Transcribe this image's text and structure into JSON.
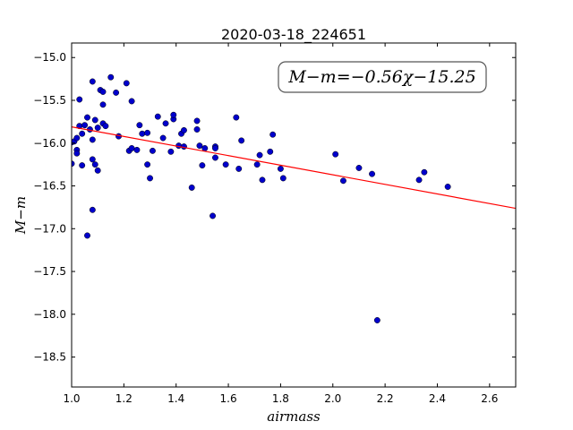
{
  "chart_data": {
    "type": "scatter",
    "title": "2020-03-18_224651",
    "xlabel": "airmass",
    "ylabel": "M−m",
    "xlim": [
      1.0,
      2.7
    ],
    "ylim": [
      -18.85,
      -14.83
    ],
    "y_inverted": true,
    "grid": false,
    "xticks": [
      "1.0",
      "1.2",
      "1.4",
      "1.6",
      "1.8",
      "2.0",
      "2.2",
      "2.4",
      "2.6"
    ],
    "yticks": [
      "−15.0",
      "−15.5",
      "−16.0",
      "−16.5",
      "−17.0",
      "−17.5",
      "−18.0",
      "−18.5"
    ],
    "annotation": "M−m=−0.56χ−15.25",
    "fit": {
      "slope": -0.56,
      "intercept": -15.25,
      "color": "#ff0000"
    },
    "point_color": "#0000cc",
    "points": [
      [
        1.0,
        -16.24
      ],
      [
        1.0,
        -15.99
      ],
      [
        1.01,
        -15.98
      ],
      [
        1.02,
        -15.94
      ],
      [
        1.02,
        -16.08
      ],
      [
        1.02,
        -16.12
      ],
      [
        1.03,
        -15.8
      ],
      [
        1.03,
        -15.49
      ],
      [
        1.04,
        -15.89
      ],
      [
        1.04,
        -16.26
      ],
      [
        1.05,
        -15.79
      ],
      [
        1.06,
        -15.7
      ],
      [
        1.06,
        -17.08
      ],
      [
        1.07,
        -15.84
      ],
      [
        1.08,
        -15.28
      ],
      [
        1.08,
        -16.19
      ],
      [
        1.08,
        -15.96
      ],
      [
        1.08,
        -16.78
      ],
      [
        1.09,
        -15.73
      ],
      [
        1.09,
        -16.25
      ],
      [
        1.1,
        -16.32
      ],
      [
        1.1,
        -15.82
      ],
      [
        1.11,
        -15.38
      ],
      [
        1.12,
        -15.77
      ],
      [
        1.12,
        -15.4
      ],
      [
        1.12,
        -15.55
      ],
      [
        1.13,
        -15.8
      ],
      [
        1.15,
        -15.23
      ],
      [
        1.17,
        -15.41
      ],
      [
        1.18,
        -15.92
      ],
      [
        1.21,
        -15.3
      ],
      [
        1.22,
        -16.09
      ],
      [
        1.23,
        -15.51
      ],
      [
        1.23,
        -16.06
      ],
      [
        1.25,
        -16.08
      ],
      [
        1.26,
        -15.79
      ],
      [
        1.27,
        -15.89
      ],
      [
        1.29,
        -15.88
      ],
      [
        1.29,
        -16.25
      ],
      [
        1.3,
        -16.41
      ],
      [
        1.31,
        -16.09
      ],
      [
        1.33,
        -15.69
      ],
      [
        1.35,
        -15.94
      ],
      [
        1.36,
        -15.77
      ],
      [
        1.38,
        -16.1
      ],
      [
        1.39,
        -15.72
      ],
      [
        1.39,
        -15.67
      ],
      [
        1.41,
        -16.03
      ],
      [
        1.42,
        -15.89
      ],
      [
        1.43,
        -15.85
      ],
      [
        1.43,
        -16.04
      ],
      [
        1.46,
        -16.52
      ],
      [
        1.48,
        -15.74
      ],
      [
        1.48,
        -15.84
      ],
      [
        1.49,
        -16.03
      ],
      [
        1.5,
        -16.26
      ],
      [
        1.51,
        -16.06
      ],
      [
        1.54,
        -16.85
      ],
      [
        1.55,
        -16.04
      ],
      [
        1.55,
        -16.06
      ],
      [
        1.55,
        -16.17
      ],
      [
        1.59,
        -16.25
      ],
      [
        1.63,
        -15.7
      ],
      [
        1.64,
        -16.3
      ],
      [
        1.65,
        -15.97
      ],
      [
        1.71,
        -16.25
      ],
      [
        1.72,
        -16.14
      ],
      [
        1.73,
        -16.43
      ],
      [
        1.76,
        -16.1
      ],
      [
        1.77,
        -15.9
      ],
      [
        1.8,
        -16.3
      ],
      [
        1.81,
        -16.41
      ],
      [
        2.01,
        -16.13
      ],
      [
        2.04,
        -16.44
      ],
      [
        2.1,
        -16.29
      ],
      [
        2.15,
        -16.36
      ],
      [
        2.17,
        -18.07
      ],
      [
        2.33,
        -16.43
      ],
      [
        2.35,
        -16.34
      ],
      [
        2.44,
        -16.51
      ]
    ]
  }
}
